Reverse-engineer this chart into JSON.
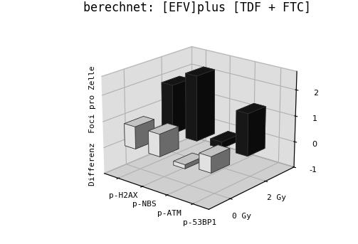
{
  "title": "berechnet: [EFV]plus [TDF + FTC]",
  "categories": [
    "p-H2AX",
    "p-NBS",
    "p-ATM",
    "p-53BP1"
  ],
  "series_labels": [
    "0 Gy",
    "2 Gy"
  ],
  "values_2gy": [
    1.9,
    2.5,
    0.25,
    1.6
  ],
  "values_0gy": [
    0.85,
    0.85,
    -0.15,
    0.6
  ],
  "bar_color_2gy": "#1a1a1a",
  "bar_color_0gy": "#ffffff",
  "background_wall_left": "#bebebe",
  "background_wall_back": "#bebebe",
  "background_floor": "#a0a0a0",
  "zlabel_line1": "Differenz",
  "zlabel_line2": "Foci pro Zelle",
  "ylim": [
    -1,
    2.7
  ],
  "yticks": [
    -1,
    0,
    1,
    2
  ],
  "title_fontsize": 12,
  "label_fontsize": 8,
  "tick_fontsize": 8,
  "bar_width": 0.45,
  "bar_depth": 0.35,
  "elev": 20,
  "azim": -50
}
